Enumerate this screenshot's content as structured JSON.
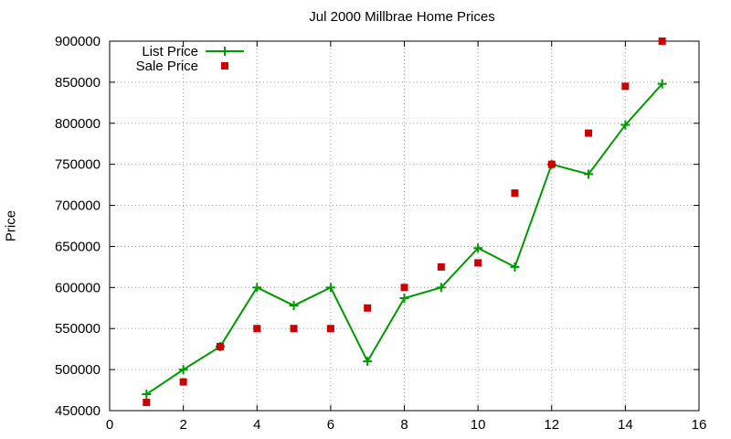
{
  "chart_data": {
    "type": "line",
    "title": "Jul 2000 Millbrae Home Prices",
    "xlabel": "",
    "ylabel": "Price",
    "xlim": [
      0,
      16
    ],
    "ylim": [
      450000,
      900000
    ],
    "xticks": [
      0,
      2,
      4,
      6,
      8,
      10,
      12,
      14,
      16
    ],
    "yticks": [
      450000,
      500000,
      550000,
      600000,
      650000,
      700000,
      750000,
      800000,
      850000,
      900000
    ],
    "grid": true,
    "legend_position": "top-left",
    "series": [
      {
        "name": "List Price",
        "style": "line+cross",
        "color": "#009900",
        "x": [
          1,
          2,
          3,
          4,
          5,
          6,
          7,
          8,
          9,
          10,
          11,
          12,
          13,
          14,
          15
        ],
        "y": [
          470000,
          500000,
          528000,
          600000,
          578000,
          600000,
          510000,
          587000,
          600000,
          648000,
          625000,
          750000,
          738000,
          798000,
          848000
        ]
      },
      {
        "name": "Sale Price",
        "style": "square",
        "color": "#cc0000",
        "x": [
          1,
          2,
          3,
          4,
          5,
          6,
          7,
          8,
          9,
          10,
          11,
          12,
          13,
          14,
          15
        ],
        "y": [
          460000,
          485000,
          528000,
          550000,
          550000,
          550000,
          575000,
          600000,
          625000,
          630000,
          715000,
          750000,
          788000,
          845000,
          900000
        ]
      }
    ]
  }
}
